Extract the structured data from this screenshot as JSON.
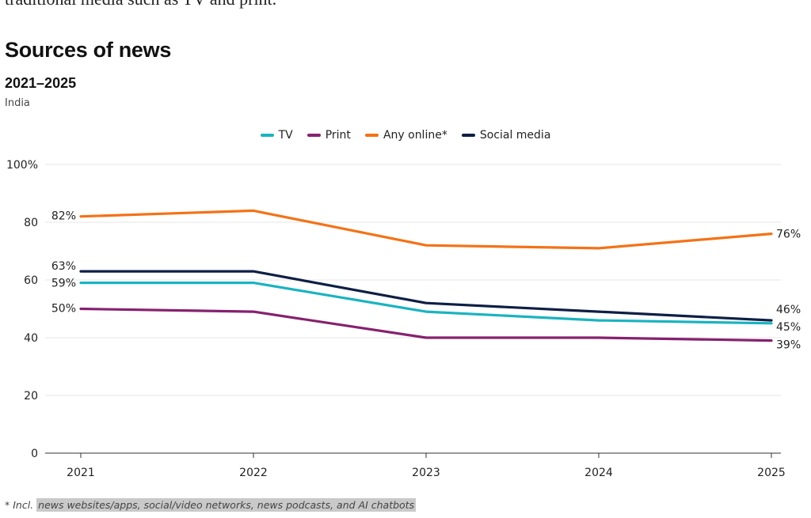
{
  "header": {
    "cut_text": "traditional media such as TV and print.",
    "title": "Sources of news",
    "subtitle": "2021–2025",
    "region": "India"
  },
  "footnote": {
    "prefix": "* Incl.",
    "highlight": "news websites/apps, social/video networks, news podcasts, and AI chatbots"
  },
  "chart_data": {
    "type": "line",
    "title": "Sources of news",
    "subtitle": "2021–2025",
    "xlabel": "",
    "ylabel": "",
    "x": [
      "2021",
      "2022",
      "2023",
      "2024",
      "2025"
    ],
    "ylim": [
      0,
      100
    ],
    "yticks": [
      0,
      20,
      40,
      60,
      80,
      100
    ],
    "ytick_labels": [
      "0",
      "20",
      "40",
      "60",
      "80",
      "100%"
    ],
    "legend_position": "top-center",
    "grid": true,
    "series": [
      {
        "name": "TV",
        "color": "#1ab3c1",
        "values": [
          59,
          59,
          49,
          46,
          45
        ],
        "start_label": "59%",
        "end_label": "45%"
      },
      {
        "name": "Print",
        "color": "#86216e",
        "values": [
          50,
          49,
          40,
          40,
          39
        ],
        "start_label": "50%",
        "end_label": "39%"
      },
      {
        "name": "Any online*",
        "color": "#f47216",
        "values": [
          82,
          84,
          72,
          71,
          76
        ],
        "start_label": "82%",
        "end_label": "76%"
      },
      {
        "name": "Social media",
        "color": "#0e1f45",
        "values": [
          63,
          63,
          52,
          49,
          46
        ],
        "start_label": "63%",
        "end_label": "46%"
      }
    ]
  }
}
